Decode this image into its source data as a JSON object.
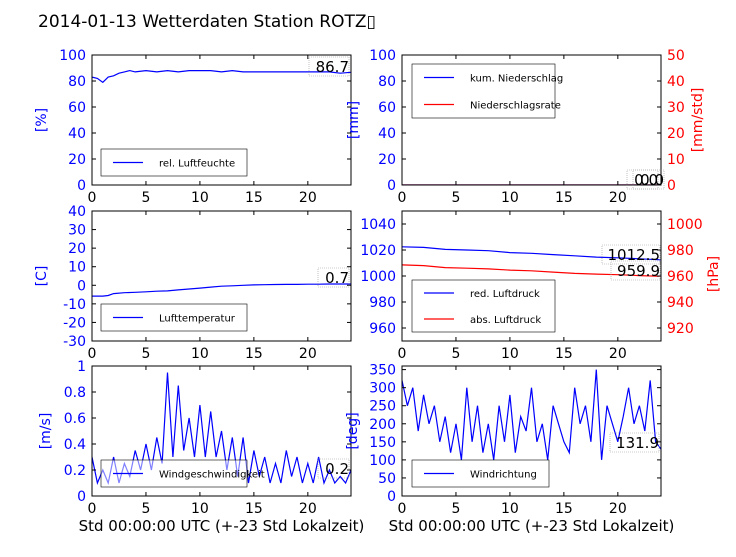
{
  "title": "2014-01-13 Wetterdaten Station ROTZ▯",
  "colors": {
    "blue": "#0000ff",
    "red": "#ff0000",
    "black": "#000000"
  },
  "chart_data": [
    {
      "id": "humidity",
      "type": "line",
      "ylabel": "[%]",
      "xlim": [
        0,
        24
      ],
      "ylim": [
        0,
        100
      ],
      "xticks": [
        0,
        5,
        10,
        15,
        20
      ],
      "yticks": [
        0,
        20,
        40,
        60,
        80,
        100
      ],
      "legend": {
        "placement": "lower-left"
      },
      "annotation": "86.7",
      "series": [
        {
          "name": "rel. Luftfeuchte",
          "color": "#0000ff",
          "x": [
            0,
            0.5,
            1,
            1.5,
            2,
            2.5,
            3,
            3.5,
            4,
            5,
            6,
            7,
            8,
            9,
            10,
            11,
            12,
            13,
            14,
            15,
            16,
            17,
            18,
            19,
            20,
            21,
            22,
            23,
            24
          ],
          "y": [
            83,
            82,
            79,
            83,
            84,
            86,
            87,
            88,
            87,
            88,
            87,
            88,
            87,
            88,
            88,
            88,
            87,
            88,
            87,
            87,
            87,
            87,
            87,
            87,
            87,
            87,
            87,
            86,
            86.7
          ]
        }
      ]
    },
    {
      "id": "precip",
      "type": "line",
      "ylabel": "[mm]",
      "ylabel_right": "[mm/std]",
      "xlim": [
        0,
        24
      ],
      "ylim": [
        0,
        100
      ],
      "ylim_right": [
        0,
        50
      ],
      "xticks": [
        0,
        5,
        10,
        15,
        20
      ],
      "yticks": [
        0,
        20,
        40,
        60,
        80,
        100
      ],
      "yticks_right": [
        0,
        10,
        20,
        30,
        40,
        50
      ],
      "legend": {
        "placement": "upper-left"
      },
      "annotations": [
        "0.0",
        "0.0"
      ],
      "series": [
        {
          "name": "kum. Niederschlag",
          "color": "#0000ff",
          "axis": "left",
          "x": [
            0,
            24
          ],
          "y": [
            0,
            0
          ]
        },
        {
          "name": "Niederschlagsrate",
          "color": "#ff0000",
          "axis": "right",
          "x": [
            0,
            24
          ],
          "y": [
            0,
            0
          ]
        }
      ]
    },
    {
      "id": "temperature",
      "type": "line",
      "ylabel": "[C]",
      "xlim": [
        0,
        24
      ],
      "ylim": [
        -30,
        40
      ],
      "xticks": [
        0,
        5,
        10,
        15,
        20
      ],
      "yticks": [
        -30,
        -20,
        -10,
        0,
        10,
        20,
        30,
        40
      ],
      "legend": {
        "placement": "lower-left"
      },
      "annotation": "0.7",
      "series": [
        {
          "name": "Lufttemperatur",
          "color": "#0000ff",
          "x": [
            0,
            1,
            1.5,
            2,
            3,
            4,
            5,
            6,
            7,
            8,
            9,
            10,
            11,
            12,
            13,
            14,
            15,
            16,
            17,
            18,
            19,
            20,
            21,
            22,
            23,
            24
          ],
          "y": [
            -5.8,
            -5.8,
            -5.5,
            -4.5,
            -4,
            -3.8,
            -3.5,
            -3.2,
            -3,
            -2.5,
            -2,
            -1.5,
            -1,
            -0.5,
            -0.3,
            0,
            0.2,
            0.3,
            0.4,
            0.5,
            0.5,
            0.6,
            0.6,
            0.7,
            0.7,
            0.7
          ]
        }
      ]
    },
    {
      "id": "pressure",
      "type": "line",
      "ylabel_right": "[hPa]",
      "xlim": [
        0,
        24
      ],
      "ylim": [
        950,
        1050
      ],
      "ylim_right": [
        910,
        1010
      ],
      "xticks": [
        0,
        5,
        10,
        15,
        20
      ],
      "yticks": [
        960,
        980,
        1000,
        1020,
        1040
      ],
      "yticks_right": [
        920,
        940,
        960,
        980,
        1000
      ],
      "legend": {
        "placement": "lower-left"
      },
      "annotations": [
        "1012.5",
        "959.9"
      ],
      "series": [
        {
          "name": "red. Luftdruck",
          "color": "#0000ff",
          "axis": "left",
          "x": [
            0,
            2,
            4,
            6,
            8,
            10,
            12,
            14,
            16,
            18,
            20,
            22,
            24
          ],
          "y": [
            1022.5,
            1022,
            1020.5,
            1020,
            1019.5,
            1018,
            1017.5,
            1016.5,
            1015.5,
            1014.5,
            1014,
            1013.2,
            1012.5
          ]
        },
        {
          "name": "abs. Luftdruck",
          "color": "#ff0000",
          "axis": "left",
          "x": [
            0,
            2,
            4,
            6,
            8,
            10,
            12,
            14,
            16,
            18,
            20,
            22,
            24
          ],
          "y": [
            1008.5,
            1008,
            1006.5,
            1006,
            1005.5,
            1004.5,
            1004,
            1003,
            1002,
            1001.5,
            1001,
            1000.3,
            999.8
          ]
        }
      ]
    },
    {
      "id": "windspeed",
      "type": "line",
      "ylabel": "[m/s]",
      "xlim": [
        0,
        24
      ],
      "ylim": [
        0,
        1.0
      ],
      "xticks": [
        0,
        5,
        10,
        15,
        20
      ],
      "yticks": [
        0.0,
        0.2,
        0.4,
        0.6,
        0.8,
        1.0
      ],
      "xlabel": "Std 00:00:00 UTC (+-23 Std Lokalzeit)",
      "legend": {
        "placement": "lower-left"
      },
      "annotation": "0.2",
      "series": [
        {
          "name": "Windgeschwindigkeit",
          "color": "#0000ff",
          "x": [
            0,
            0.5,
            1,
            1.5,
            2,
            2.5,
            3,
            3.5,
            4,
            4.5,
            5,
            5.5,
            6,
            6.5,
            7,
            7.5,
            8,
            8.5,
            9,
            9.5,
            10,
            10.5,
            11,
            11.5,
            12,
            12.5,
            13,
            13.5,
            14,
            14.5,
            15,
            15.5,
            16,
            16.5,
            17,
            17.5,
            18,
            18.5,
            19,
            19.5,
            20,
            20.5,
            21,
            21.5,
            22,
            22.5,
            23,
            23.5,
            24
          ],
          "y": [
            0.3,
            0.1,
            0.2,
            0.1,
            0.3,
            0.1,
            0.25,
            0.15,
            0.35,
            0.2,
            0.4,
            0.2,
            0.45,
            0.25,
            0.95,
            0.3,
            0.85,
            0.35,
            0.6,
            0.3,
            0.7,
            0.3,
            0.65,
            0.3,
            0.5,
            0.2,
            0.45,
            0.15,
            0.45,
            0.1,
            0.35,
            0.15,
            0.3,
            0.1,
            0.25,
            0.1,
            0.35,
            0.15,
            0.3,
            0.1,
            0.25,
            0.1,
            0.3,
            0.1,
            0.2,
            0.1,
            0.15,
            0.1,
            0.2
          ]
        }
      ]
    },
    {
      "id": "winddir",
      "type": "line",
      "ylabel": "[deg]",
      "xlim": [
        0,
        24
      ],
      "ylim": [
        0,
        360
      ],
      "xticks": [
        0,
        5,
        10,
        15,
        20
      ],
      "yticks": [
        0,
        50,
        100,
        150,
        200,
        250,
        300,
        350
      ],
      "xlabel": "Std 00:00:00 UTC (+-23 Std Lokalzeit)",
      "legend": {
        "placement": "lower-left"
      },
      "annotation": "131.9",
      "series": [
        {
          "name": "Windrichtung",
          "color": "#0000ff",
          "x": [
            0,
            0.5,
            1,
            1.5,
            2,
            2.5,
            3,
            3.5,
            4,
            4.5,
            5,
            5.5,
            6,
            6.5,
            7,
            7.5,
            8,
            8.5,
            9,
            9.5,
            10,
            10.5,
            11,
            11.5,
            12,
            12.5,
            13,
            13.5,
            14,
            14.5,
            15,
            15.5,
            16,
            16.5,
            17,
            17.5,
            18,
            18.5,
            19,
            19.5,
            20,
            20.5,
            21,
            21.5,
            22,
            22.5,
            23,
            23.5,
            24
          ],
          "y": [
            320,
            250,
            300,
            180,
            280,
            200,
            250,
            150,
            220,
            120,
            200,
            100,
            300,
            150,
            250,
            120,
            200,
            100,
            250,
            150,
            280,
            120,
            220,
            180,
            300,
            150,
            200,
            100,
            250,
            200,
            150,
            120,
            300,
            200,
            250,
            150,
            350,
            100,
            250,
            200,
            150,
            220,
            300,
            200,
            250,
            180,
            320,
            150,
            130
          ]
        }
      ]
    }
  ]
}
